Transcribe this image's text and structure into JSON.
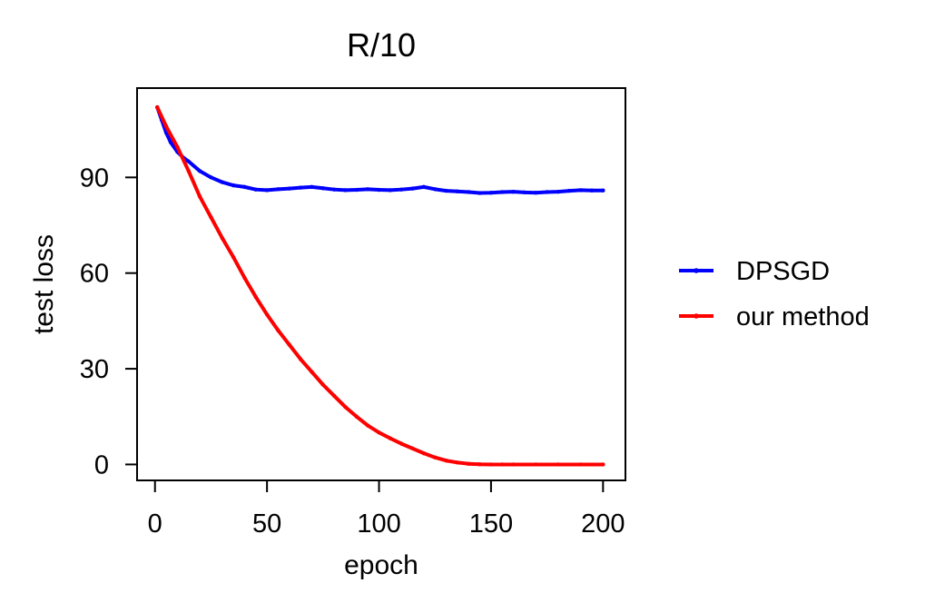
{
  "chart_data": {
    "type": "line",
    "title": "R/10",
    "xlabel": "epoch",
    "ylabel": "test loss",
    "xlim": [
      -8,
      210
    ],
    "ylim": [
      -5,
      118
    ],
    "xticks": [
      0,
      50,
      100,
      150,
      200
    ],
    "yticks": [
      0,
      30,
      60,
      90
    ],
    "grid": false,
    "legend_position": "right",
    "series": [
      {
        "name": "DPSGD",
        "color": "#0000ff",
        "x": [
          1,
          3,
          5,
          7,
          10,
          13,
          15,
          20,
          25,
          30,
          35,
          40,
          45,
          50,
          55,
          60,
          65,
          70,
          75,
          80,
          85,
          90,
          95,
          100,
          105,
          110,
          115,
          120,
          125,
          130,
          135,
          140,
          145,
          150,
          155,
          160,
          165,
          170,
          175,
          180,
          185,
          190,
          195,
          200
        ],
        "y": [
          112,
          108,
          104,
          101,
          98,
          96,
          95,
          92,
          90,
          88.5,
          87.5,
          87,
          86.2,
          86,
          86.3,
          86.5,
          86.8,
          87,
          86.6,
          86.2,
          86,
          86.1,
          86.3,
          86.1,
          86,
          86.2,
          86.5,
          87,
          86.3,
          85.8,
          85.6,
          85.4,
          85.1,
          85.2,
          85.4,
          85.5,
          85.3,
          85.2,
          85.4,
          85.5,
          85.8,
          86,
          85.9,
          85.9
        ]
      },
      {
        "name": "our method",
        "color": "#ff0000",
        "x": [
          1,
          5,
          10,
          15,
          20,
          25,
          30,
          35,
          40,
          45,
          50,
          55,
          60,
          65,
          70,
          75,
          80,
          85,
          90,
          95,
          100,
          105,
          110,
          115,
          120,
          125,
          130,
          135,
          140,
          145,
          150,
          155,
          160,
          170,
          180,
          190,
          200
        ],
        "y": [
          112,
          106,
          99.5,
          92,
          84,
          77.5,
          71,
          65,
          58.5,
          52.5,
          47,
          42,
          37.5,
          33,
          29,
          25,
          21.5,
          18,
          15,
          12.2,
          10,
          8.2,
          6.5,
          5,
          3.5,
          2.2,
          1.2,
          0.6,
          0.2,
          0.05,
          0,
          0,
          0,
          0,
          0,
          0,
          0
        ]
      }
    ]
  }
}
